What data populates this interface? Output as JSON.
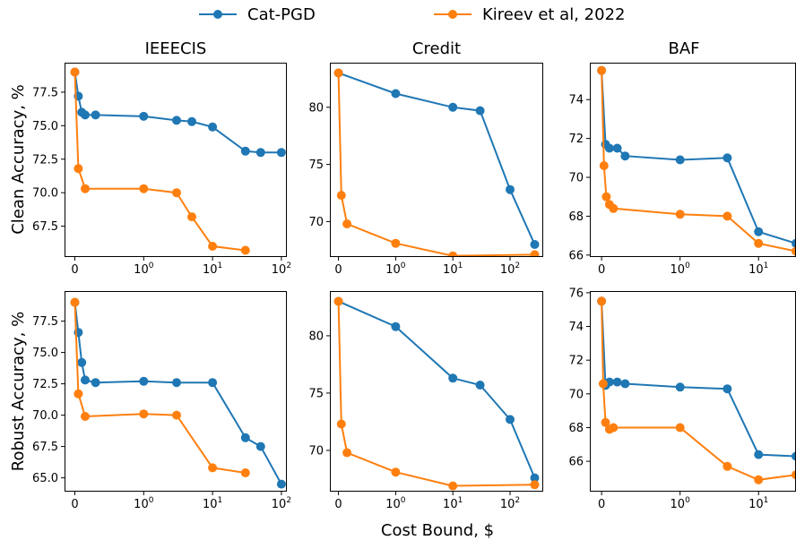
{
  "chart_data": {
    "type": "line",
    "legend": {
      "placement": "top-center",
      "entries": [
        {
          "name": "Cat-PGD",
          "color": "#1f77b4"
        },
        {
          "name": "Kireev et al, 2022",
          "color": "#ff7f0e"
        }
      ]
    },
    "xlabel": "Cost Bound, $",
    "row_labels": [
      "Clean Accuracy, %",
      "Robust Accuracy, %"
    ],
    "column_titles": [
      "IEEECIS",
      "Credit",
      "BAF"
    ],
    "xscale": "symlog",
    "grid": false,
    "panels": [
      {
        "row": 0,
        "col": 0,
        "xlim": [
          -0.15,
          120
        ],
        "ylim": [
          65.2,
          79.7
        ],
        "xticks": [
          {
            "v": 0,
            "base": "0",
            "exp": ""
          },
          {
            "v": 1,
            "base": "10",
            "exp": "0"
          },
          {
            "v": 10,
            "base": "10",
            "exp": "1"
          },
          {
            "v": 100,
            "base": "10",
            "exp": "2"
          }
        ],
        "yticks": [
          67.5,
          70.0,
          72.5,
          75.0,
          77.5
        ],
        "series": [
          {
            "name": "Cat-PGD",
            "x": [
              0,
              0.05,
              0.1,
              0.15,
              0.3,
              1,
              3,
              5,
              10,
              30,
              50,
              100
            ],
            "y": [
              79.0,
              77.2,
              76.0,
              75.8,
              75.8,
              75.7,
              75.4,
              75.3,
              74.9,
              73.1,
              73.0,
              73.0
            ]
          },
          {
            "name": "Kireev et al, 2022",
            "x": [
              0,
              0.05,
              0.15,
              1,
              3,
              5,
              10,
              30
            ],
            "y": [
              79.0,
              71.8,
              70.3,
              70.3,
              70.0,
              68.2,
              66.0,
              65.7
            ]
          }
        ]
      },
      {
        "row": 0,
        "col": 1,
        "xlim": [
          -0.15,
          380
        ],
        "ylim": [
          66.9,
          83.9
        ],
        "xticks": [
          {
            "v": 0,
            "base": "0",
            "exp": ""
          },
          {
            "v": 1,
            "base": "10",
            "exp": "0"
          },
          {
            "v": 10,
            "base": "10",
            "exp": "1"
          },
          {
            "v": 100,
            "base": "10",
            "exp": "2"
          }
        ],
        "yticks": [
          70,
          75,
          80
        ],
        "series": [
          {
            "name": "Cat-PGD",
            "x": [
              0,
              1,
              10,
              30,
              100,
              270
            ],
            "y": [
              83.0,
              81.2,
              80.0,
              79.7,
              72.8,
              68.0
            ]
          },
          {
            "name": "Kireev et al, 2022",
            "x": [
              0,
              0.05,
              0.15,
              1,
              10,
              270
            ],
            "y": [
              83.0,
              72.3,
              69.8,
              68.1,
              67.0,
              67.1
            ]
          }
        ]
      },
      {
        "row": 0,
        "col": 2,
        "xlim": [
          -0.15,
          30
        ],
        "ylim": [
          65.9,
          75.9
        ],
        "xticks": [
          {
            "v": 0,
            "base": "0",
            "exp": ""
          },
          {
            "v": 1,
            "base": "10",
            "exp": "0"
          },
          {
            "v": 10,
            "base": "10",
            "exp": "1"
          }
        ],
        "yticks": [
          66,
          68,
          70,
          72,
          74
        ],
        "series": [
          {
            "name": "Cat-PGD",
            "x": [
              0,
              0.05,
              0.1,
              0.2,
              0.3,
              1,
              4,
              10,
              30
            ],
            "y": [
              75.5,
              71.7,
              71.5,
              71.5,
              71.1,
              70.9,
              71.0,
              67.2,
              66.6
            ]
          },
          {
            "name": "Kireev et al, 2022",
            "x": [
              0,
              0.03,
              0.06,
              0.1,
              0.15,
              1,
              4,
              10,
              30
            ],
            "y": [
              75.5,
              70.6,
              69.0,
              68.6,
              68.4,
              68.1,
              68.0,
              66.6,
              66.2
            ]
          }
        ]
      },
      {
        "row": 1,
        "col": 0,
        "xlim": [
          -0.15,
          120
        ],
        "ylim": [
          63.9,
          79.9
        ],
        "xticks": [
          {
            "v": 0,
            "base": "0",
            "exp": ""
          },
          {
            "v": 1,
            "base": "10",
            "exp": "0"
          },
          {
            "v": 10,
            "base": "10",
            "exp": "1"
          },
          {
            "v": 100,
            "base": "10",
            "exp": "2"
          }
        ],
        "yticks": [
          65.0,
          67.5,
          70.0,
          72.5,
          75.0,
          77.5
        ],
        "series": [
          {
            "name": "Cat-PGD",
            "x": [
              0,
              0.05,
              0.1,
              0.15,
              0.3,
              1,
              3,
              10,
              30,
              50,
              100
            ],
            "y": [
              79.0,
              76.6,
              74.2,
              72.8,
              72.6,
              72.7,
              72.6,
              72.6,
              68.2,
              67.5,
              64.5
            ]
          },
          {
            "name": "Kireev et al, 2022",
            "x": [
              0,
              0.05,
              0.15,
              1,
              3,
              10,
              30
            ],
            "y": [
              79.0,
              71.7,
              69.9,
              70.1,
              70.0,
              65.8,
              65.4
            ]
          }
        ]
      },
      {
        "row": 1,
        "col": 1,
        "xlim": [
          -0.15,
          380
        ],
        "ylim": [
          66.4,
          83.9
        ],
        "xticks": [
          {
            "v": 0,
            "base": "0",
            "exp": ""
          },
          {
            "v": 1,
            "base": "10",
            "exp": "0"
          },
          {
            "v": 10,
            "base": "10",
            "exp": "1"
          },
          {
            "v": 100,
            "base": "10",
            "exp": "2"
          }
        ],
        "yticks": [
          70,
          75,
          80
        ],
        "series": [
          {
            "name": "Cat-PGD",
            "x": [
              0,
              1,
              10,
              30,
              100,
              270
            ],
            "y": [
              83.0,
              80.8,
              76.3,
              75.7,
              72.7,
              67.6
            ]
          },
          {
            "name": "Kireev et al, 2022",
            "x": [
              0,
              0.05,
              0.15,
              1,
              10,
              270
            ],
            "y": [
              83.0,
              72.3,
              69.8,
              68.1,
              66.9,
              67.0
            ]
          }
        ]
      },
      {
        "row": 1,
        "col": 2,
        "xlim": [
          -0.15,
          30
        ],
        "ylim": [
          64.2,
          76.1
        ],
        "xticks": [
          {
            "v": 0,
            "base": "0",
            "exp": ""
          },
          {
            "v": 1,
            "base": "10",
            "exp": "0"
          },
          {
            "v": 10,
            "base": "10",
            "exp": "1"
          }
        ],
        "yticks": [
          66,
          68,
          70,
          72,
          74,
          76
        ],
        "series": [
          {
            "name": "Cat-PGD",
            "x": [
              0,
              0.05,
              0.1,
              0.2,
              0.3,
              1,
              4,
              10,
              30
            ],
            "y": [
              75.5,
              70.5,
              70.7,
              70.7,
              70.6,
              70.4,
              70.3,
              66.4,
              66.3
            ]
          },
          {
            "name": "Kireev et al, 2022",
            "x": [
              0,
              0.02,
              0.05,
              0.1,
              0.15,
              1,
              4,
              10,
              30
            ],
            "y": [
              75.5,
              70.6,
              68.3,
              67.9,
              68.0,
              68.0,
              65.7,
              64.9,
              65.2
            ]
          }
        ]
      }
    ]
  }
}
